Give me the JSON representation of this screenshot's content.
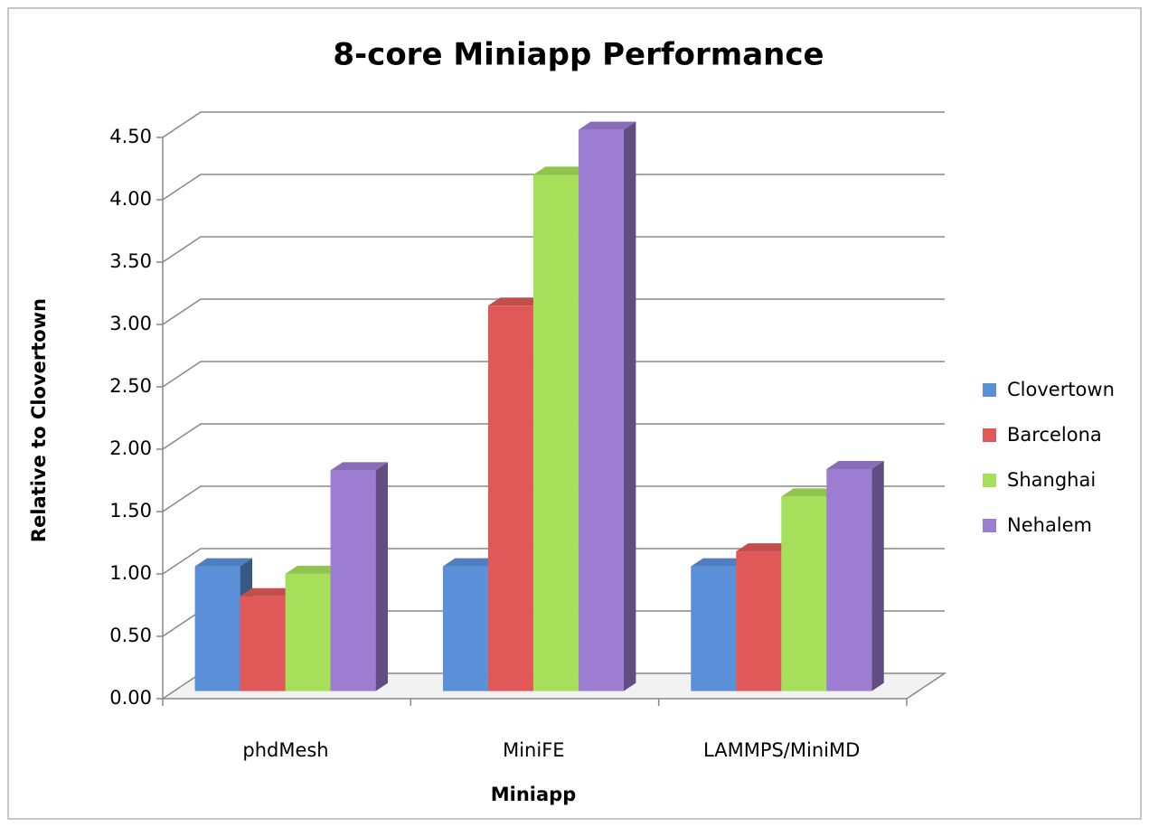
{
  "chart_data": {
    "type": "bar3d",
    "title": "8-core Miniapp Performance",
    "x_label": "Miniapp",
    "y_label": "Relative to Clovertown",
    "categories": [
      "phdMesh",
      "MiniFE",
      "LAMMPS/MiniMD"
    ],
    "series": [
      {
        "name": "Clovertown",
        "color": "#5b8fd8",
        "values": [
          1.0,
          1.0,
          1.0
        ]
      },
      {
        "name": "Barcelona",
        "color": "#e05858",
        "values": [
          0.76,
          3.09,
          1.12
        ]
      },
      {
        "name": "Shanghai",
        "color": "#a6e05a",
        "values": [
          0.94,
          4.14,
          1.56
        ]
      },
      {
        "name": "Nehalem",
        "color": "#9d7dd2",
        "values": [
          1.77,
          4.5,
          1.78
        ]
      }
    ],
    "ylim": [
      0,
      4.5
    ],
    "yticks": [
      {
        "value": 0,
        "label": "0.00"
      },
      {
        "value": 0.5,
        "label": "0.50"
      },
      {
        "value": 1,
        "label": "1.00"
      },
      {
        "value": 1.5,
        "label": "1.50"
      },
      {
        "value": 2,
        "label": "2.00"
      },
      {
        "value": 2.5,
        "label": "2.50"
      },
      {
        "value": 3,
        "label": "3.00"
      },
      {
        "value": 3.5,
        "label": "3.50"
      },
      {
        "value": 4,
        "label": "4.00"
      },
      {
        "value": 4.5,
        "label": "4.50"
      }
    ],
    "grid": true,
    "legend": "right"
  }
}
